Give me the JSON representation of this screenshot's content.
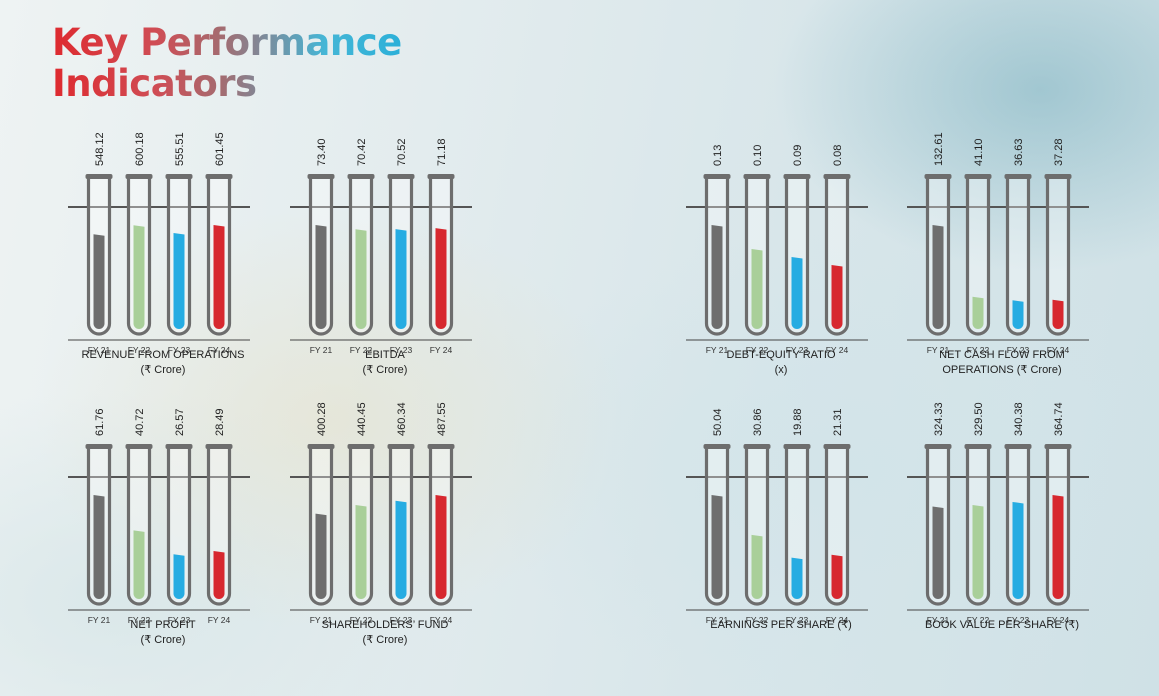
{
  "header": {
    "title_line1": "Key Performance",
    "title_line2": "Indicators"
  },
  "colors": {
    "fy21": "#6e6e6e",
    "fy22": "#a9cf99",
    "fy23": "#26ace2",
    "fy24": "#d7282f",
    "tube_outline": "#6d6d6d"
  },
  "chart_data": [
    {
      "type": "bar",
      "title": "REVENUE FROM OPERATIONS",
      "subtitle": "(₹ Crore)",
      "categories": [
        "FY 21",
        "FY 22",
        "FY 23",
        "FY 24"
      ],
      "labels": [
        "548.12",
        "600.18",
        "555.51",
        "601.45"
      ],
      "values": [
        548.12,
        600.18,
        555.51,
        601.45
      ]
    },
    {
      "type": "bar",
      "title": "EBITDA",
      "subtitle": "(₹ Crore)",
      "categories": [
        "FY 21",
        "FY 22",
        "FY 23",
        "FY 24"
      ],
      "labels": [
        "73.40",
        "70.42",
        "70.52",
        "71.18"
      ],
      "values": [
        73.4,
        70.42,
        70.52,
        71.18
      ]
    },
    {
      "type": "bar",
      "title": "DEBT-EQUITY RATIO",
      "subtitle": "(x)",
      "categories": [
        "FY 21",
        "FY 22",
        "FY 23",
        "FY 24"
      ],
      "labels": [
        "0.13",
        "0.10",
        "0.09",
        "0.08"
      ],
      "values": [
        0.13,
        0.1,
        0.09,
        0.08
      ]
    },
    {
      "type": "bar",
      "title": "NET CASH FLOW FROM",
      "subtitle": "OPERATIONS (₹ Crore)",
      "categories": [
        "FY 21",
        "FY 22",
        "FY 23",
        "FY 24"
      ],
      "labels": [
        "132.61",
        "41.10",
        "36.63",
        "37.28"
      ],
      "values": [
        132.61,
        41.1,
        36.63,
        37.28
      ]
    },
    {
      "type": "bar",
      "title": "NET PROFIT",
      "subtitle": "(₹ Crore)",
      "categories": [
        "FY 21",
        "FY 22",
        "FY 23",
        "FY 24"
      ],
      "labels": [
        "61.76",
        "40.72",
        "26.57",
        "28.49"
      ],
      "values": [
        61.76,
        40.72,
        26.57,
        28.49
      ]
    },
    {
      "type": "bar",
      "title": "SHAREHOLDERS’ FUND",
      "subtitle": "(₹ Crore)",
      "categories": [
        "FY 21",
        "FY 22",
        "FY 23",
        "FY 24"
      ],
      "labels": [
        "400.28",
        "440.45",
        "460.34",
        "487.55"
      ],
      "values": [
        400.28,
        440.45,
        460.34,
        487.55
      ]
    },
    {
      "type": "bar",
      "title": "EARNINGS PER SHARE (₹)",
      "subtitle": "",
      "categories": [
        "FY 21",
        "FY 22",
        "FY 23",
        "FY 24"
      ],
      "labels": [
        "50.04",
        "30.86",
        "19.88",
        "21.31"
      ],
      "values": [
        50.04,
        30.86,
        19.88,
        21.31
      ]
    },
    {
      "type": "bar",
      "title": "BOOK VALUE PER SHARE (₹)",
      "subtitle": "",
      "categories": [
        "FY 21",
        "FY 22",
        "FY 23",
        "FY 24"
      ],
      "labels": [
        "324.33",
        "329.50",
        "340.38",
        "364.74"
      ],
      "values": [
        324.33,
        329.5,
        340.38,
        364.74
      ]
    }
  ]
}
